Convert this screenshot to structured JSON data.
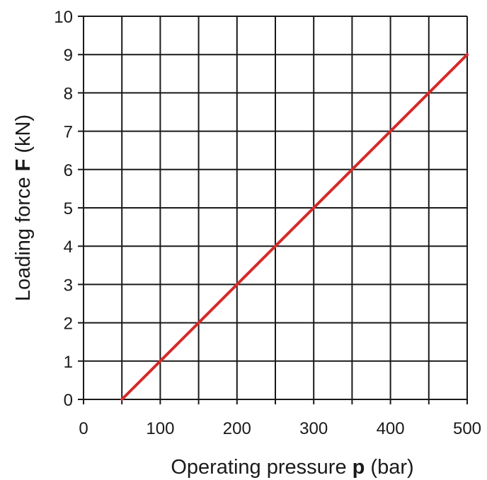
{
  "chart_data": {
    "type": "line",
    "title": "",
    "xlabel": {
      "prefix": "Operating pressure ",
      "symbol": "p",
      "suffix": " (bar)"
    },
    "ylabel": {
      "prefix": "Loading force ",
      "symbol": "F",
      "suffix": " (kN)"
    },
    "xlim": [
      0,
      500
    ],
    "ylim": [
      0,
      10
    ],
    "x_ticks": [
      0,
      100,
      200,
      300,
      400,
      500
    ],
    "y_ticks": [
      0,
      1,
      2,
      3,
      4,
      5,
      6,
      7,
      8,
      9,
      10
    ],
    "x_grid_step": 50,
    "y_grid_step": 1,
    "grid": true,
    "legend": "none",
    "series": [
      {
        "color": "#d42a2a",
        "points": [
          [
            50,
            0
          ],
          [
            500,
            9
          ]
        ]
      }
    ]
  }
}
